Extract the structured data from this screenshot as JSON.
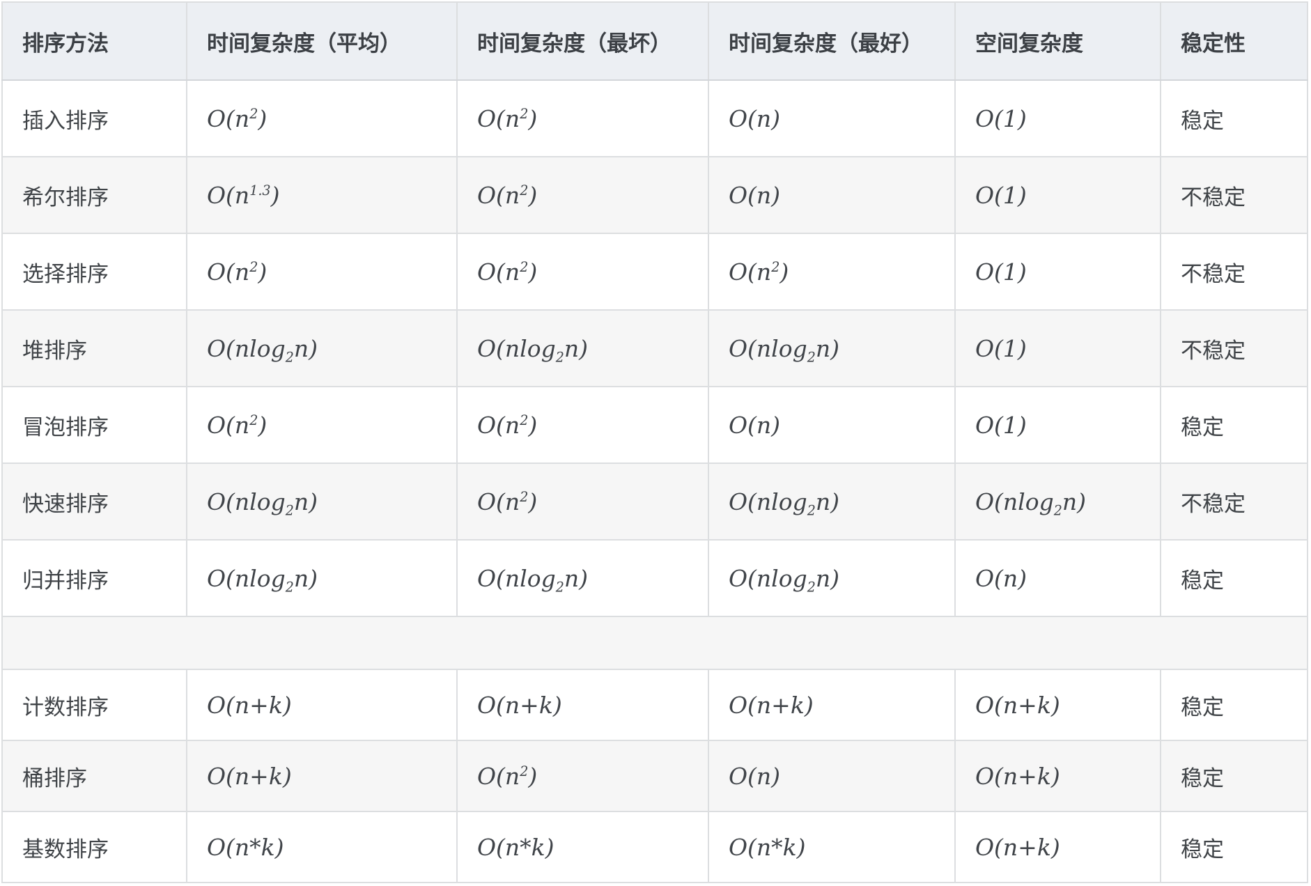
{
  "colors": {
    "header_bg": "#eceff3",
    "stripe_bg": "#f6f6f6",
    "row_bg": "#ffffff",
    "border": "#dcdee0",
    "text": "#3f4347"
  },
  "table": {
    "columns": [
      {
        "key": "method",
        "label": "排序方法"
      },
      {
        "key": "avg",
        "label": "时间复杂度（平均）"
      },
      {
        "key": "worst",
        "label": "时间复杂度（最坏）"
      },
      {
        "key": "best",
        "label": "时间复杂度（最好）"
      },
      {
        "key": "space",
        "label": "空间复杂度"
      },
      {
        "key": "stable",
        "label": "稳定性"
      }
    ],
    "rows": [
      {
        "type": "data",
        "method": "插入排序",
        "avg": "O(n^2)",
        "worst": "O(n^2)",
        "best": "O(n)",
        "space": "O(1)",
        "stable": "稳定"
      },
      {
        "type": "data",
        "method": "希尔排序",
        "avg": "O(n^1.3)",
        "worst": "O(n^2)",
        "best": "O(n)",
        "space": "O(1)",
        "stable": "不稳定"
      },
      {
        "type": "data",
        "method": "选择排序",
        "avg": "O(n^2)",
        "worst": "O(n^2)",
        "best": "O(n^2)",
        "space": "O(1)",
        "stable": "不稳定"
      },
      {
        "type": "data",
        "method": "堆排序",
        "avg": "O(nlog_2n)",
        "worst": "O(nlog_2n)",
        "best": "O(nlog_2n)",
        "space": "O(1)",
        "stable": "不稳定"
      },
      {
        "type": "data",
        "method": "冒泡排序",
        "avg": "O(n^2)",
        "worst": "O(n^2)",
        "best": "O(n)",
        "space": "O(1)",
        "stable": "稳定"
      },
      {
        "type": "data",
        "method": "快速排序",
        "avg": "O(nlog_2n)",
        "worst": "O(n^2)",
        "best": "O(nlog_2n)",
        "space": "O(nlog_2n)",
        "stable": "不稳定"
      },
      {
        "type": "data",
        "method": "归并排序",
        "avg": "O(nlog_2n)",
        "worst": "O(nlog_2n)",
        "best": "O(nlog_2n)",
        "space": "O(n)",
        "stable": "稳定"
      },
      {
        "type": "spacer"
      },
      {
        "type": "data",
        "method": "计数排序",
        "avg": "O(n+k)",
        "worst": "O(n+k)",
        "best": "O(n+k)",
        "space": "O(n+k)",
        "stable": "稳定"
      },
      {
        "type": "data",
        "method": "桶排序",
        "avg": "O(n+k)",
        "worst": "O(n^2)",
        "best": "O(n)",
        "space": "O(n+k)",
        "stable": "稳定"
      },
      {
        "type": "data",
        "method": "基数排序",
        "avg": "O(n*k)",
        "worst": "O(n*k)",
        "best": "O(n*k)",
        "space": "O(n+k)",
        "stable": "稳定"
      }
    ]
  }
}
